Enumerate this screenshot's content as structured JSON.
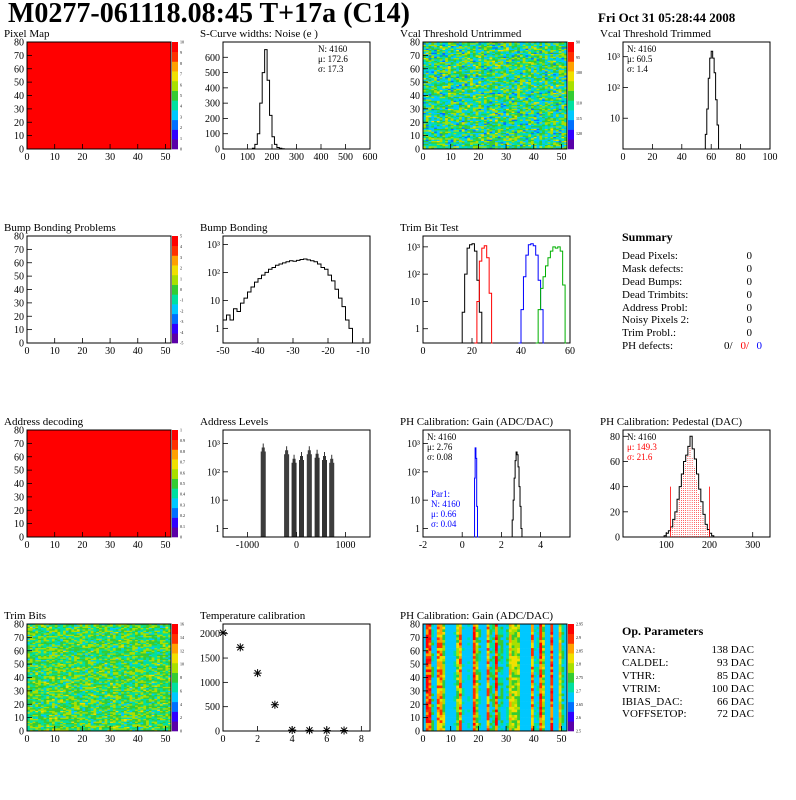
{
  "title": "M0277-061118.08:45 T+17a (C14)",
  "date": "Fri Oct 31 05:28:44 2008",
  "colors": {
    "palette": [
      "#5a00a8",
      "#3000ff",
      "#0070ff",
      "#00c8ff",
      "#00e0a0",
      "#33cc33",
      "#a8e000",
      "#f0e000",
      "#ffa000",
      "#ff3000",
      "#ff0000"
    ],
    "red": "#ff0000",
    "blue": "#0000ff",
    "green": "#00b000"
  },
  "summary": {
    "heading": "Summary",
    "rows": [
      {
        "label": "Dead Pixels:",
        "value": "0"
      },
      {
        "label": "Mask defects:",
        "value": "0"
      },
      {
        "label": "Dead Bumps:",
        "value": "0"
      },
      {
        "label": "Dead Trimbits:",
        "value": "0"
      },
      {
        "label": "Address Probl:",
        "value": "0"
      },
      {
        "label": "Noisy Pixels 2:",
        "value": "0"
      },
      {
        "label": "Trim Probl.:",
        "value": "0"
      }
    ],
    "ph_label": "PH defects:",
    "ph_values": [
      "0/",
      "0/",
      "0"
    ]
  },
  "op_params": {
    "heading": "Op. Parameters",
    "rows": [
      {
        "label": "VANA:",
        "value": "138 DAC"
      },
      {
        "label": "CALDEL:",
        "value": "93 DAC"
      },
      {
        "label": "VTHR:",
        "value": "85 DAC"
      },
      {
        "label": "VTRIM:",
        "value": "100 DAC"
      },
      {
        "label": "IBIAS_DAC:",
        "value": "66 DAC"
      },
      {
        "label": "VOFFSETOP:",
        "value": "72 DAC"
      }
    ]
  },
  "chart_data": [
    {
      "id": "pixel-map",
      "type": "heatmap",
      "title": "Pixel Map",
      "xlim": [
        0,
        52
      ],
      "ylim": [
        0,
        80
      ],
      "xticks": [
        "0",
        "10",
        "20",
        "30",
        "40",
        "50"
      ],
      "yticks": [
        "0",
        "10",
        "20",
        "30",
        "40",
        "50",
        "60",
        "70",
        "80"
      ],
      "zticks": [
        "0",
        "1",
        "2",
        "3",
        "4",
        "5",
        "6",
        "7",
        "8",
        "9",
        "10"
      ],
      "fill": "uniform-max"
    },
    {
      "id": "scurve-noise",
      "type": "histogram",
      "title": "S-Curve widths: Noise (e )",
      "xlim": [
        0,
        600
      ],
      "ylim": [
        0,
        700
      ],
      "xticks": [
        "0",
        "100",
        "200",
        "300",
        "400",
        "500",
        "600"
      ],
      "yticks": [
        "0",
        "100",
        "200",
        "300",
        "400",
        "500",
        "600"
      ],
      "stats": [
        "N: 4160",
        "μ: 172.6",
        "σ: 17.3"
      ],
      "series": [
        {
          "color": "#000",
          "x": [
            110,
            120,
            130,
            140,
            150,
            160,
            170,
            180,
            190,
            200,
            210,
            220,
            230,
            240,
            250
          ],
          "y": [
            0,
            5,
            30,
            100,
            300,
            500,
            650,
            450,
            220,
            80,
            30,
            10,
            5,
            2,
            0
          ]
        }
      ]
    },
    {
      "id": "vcal-untrimmed",
      "type": "heatmap",
      "title": "Vcal Threshold Untrimmed",
      "xlim": [
        0,
        52
      ],
      "ylim": [
        0,
        80
      ],
      "xticks": [
        "0",
        "10",
        "20",
        "30",
        "40",
        "50"
      ],
      "yticks": [
        "0",
        "10",
        "20",
        "30",
        "40",
        "50",
        "60",
        "70",
        "80"
      ],
      "zticks": [
        "",
        "120",
        "115",
        "110",
        "",
        "100",
        "95",
        "90"
      ],
      "fill": "noise-mid"
    },
    {
      "id": "vcal-trimmed",
      "type": "histogram",
      "title": "Vcal Threshold Trimmed",
      "xlim": [
        0,
        100
      ],
      "ylog": true,
      "ylim": [
        1,
        3000
      ],
      "xticks": [
        "0",
        "20",
        "40",
        "60",
        "80",
        "100"
      ],
      "yticks": [
        "10",
        "10²",
        "10³"
      ],
      "stats": [
        "N: 4160",
        "μ: 60.5",
        "σ:  1.4"
      ],
      "series": [
        {
          "color": "#000",
          "x": [
            55,
            56,
            57,
            58,
            59,
            60,
            61,
            62,
            63,
            64,
            65,
            66
          ],
          "y": [
            1,
            3,
            20,
            200,
            900,
            1500,
            900,
            300,
            40,
            6,
            1,
            1
          ]
        }
      ]
    },
    {
      "id": "bump-problems",
      "type": "heatmap",
      "title": "Bump Bonding Problems",
      "xlim": [
        0,
        52
      ],
      "ylim": [
        0,
        80
      ],
      "xticks": [
        "0",
        "10",
        "20",
        "30",
        "40",
        "50"
      ],
      "yticks": [
        "0",
        "10",
        "20",
        "30",
        "40",
        "50",
        "60",
        "70",
        "80"
      ],
      "zticks": [
        "-5",
        "-4",
        "-3",
        "-2",
        "-1",
        "0",
        "1",
        "2",
        "3",
        "4",
        "5"
      ],
      "fill": "empty"
    },
    {
      "id": "bump-bonding",
      "type": "histogram",
      "title": "Bump Bonding",
      "xlim": [
        -50,
        -8
      ],
      "ylog": true,
      "ylim": [
        0.3,
        2000
      ],
      "xticks": [
        "-50",
        "-40",
        "-30",
        "-20",
        "-10"
      ],
      "yticks": [
        "1",
        "10",
        "10²",
        "10³"
      ],
      "series": [
        {
          "color": "#000",
          "x": [
            -50,
            -49,
            -48,
            -47,
            -46,
            -45,
            -44,
            -43,
            -42,
            -41,
            -40,
            -39,
            -38,
            -37,
            -36,
            -35,
            -34,
            -33,
            -32,
            -31,
            -30,
            -29,
            -28,
            -27,
            -26,
            -25,
            -24,
            -23,
            -22,
            -21,
            -20,
            -19,
            -18,
            -17,
            -16,
            -15,
            -14,
            -13
          ],
          "y": [
            2,
            3,
            2,
            5,
            4,
            8,
            12,
            20,
            30,
            45,
            60,
            80,
            100,
            130,
            150,
            180,
            200,
            220,
            240,
            260,
            250,
            270,
            290,
            300,
            280,
            260,
            240,
            200,
            150,
            130,
            80,
            50,
            25,
            12,
            6,
            2,
            1,
            0.3
          ]
        }
      ]
    },
    {
      "id": "trim-bit-test",
      "type": "histogram",
      "title": "Trim Bit Test",
      "xlim": [
        0,
        60
      ],
      "ylog": true,
      "ylim": [
        0.3,
        2500
      ],
      "xticks": [
        "0",
        "20",
        "40",
        "60"
      ],
      "yticks": [
        "1",
        "10",
        "10²",
        "10³"
      ],
      "series": [
        {
          "color": "#000",
          "x": [
            15,
            16,
            17,
            18,
            19,
            20,
            21,
            22,
            23,
            24
          ],
          "y": [
            0.3,
            4,
            100,
            900,
            1200,
            1300,
            700,
            60,
            4,
            0.3
          ]
        },
        {
          "color": "#ff0000",
          "x": [
            21,
            22,
            23,
            24,
            25,
            26,
            27,
            28
          ],
          "y": [
            0.3,
            10,
            300,
            900,
            1100,
            400,
            20,
            0.3
          ]
        },
        {
          "color": "#0000ff",
          "x": [
            39,
            40,
            41,
            42,
            43,
            44,
            45,
            46,
            47,
            48,
            49
          ],
          "y": [
            0.3,
            5,
            80,
            500,
            1200,
            1300,
            1100,
            500,
            60,
            5,
            0.3
          ]
        },
        {
          "color": "#00b000",
          "x": [
            46,
            47,
            48,
            49,
            50,
            51,
            52,
            53,
            54,
            55,
            56,
            57,
            58
          ],
          "y": [
            0.3,
            5,
            30,
            80,
            200,
            400,
            700,
            1000,
            900,
            1000,
            700,
            40,
            0.3
          ]
        }
      ]
    },
    {
      "id": "address-decoding",
      "type": "heatmap",
      "title": "Address decoding",
      "xlim": [
        0,
        52
      ],
      "ylim": [
        0,
        80
      ],
      "xticks": [
        "0",
        "10",
        "20",
        "30",
        "40",
        "50"
      ],
      "yticks": [
        "0",
        "10",
        "20",
        "30",
        "40",
        "50",
        "60",
        "70",
        "80"
      ],
      "zticks": [
        "0",
        "0.1",
        "0.2",
        "0.3",
        "0.4",
        "0.5",
        "0.6",
        "0.7",
        "0.8",
        "0.9",
        "1"
      ],
      "fill": "uniform-max"
    },
    {
      "id": "address-levels",
      "type": "histogram",
      "title": "Address Levels",
      "xlim": [
        -1500,
        1500
      ],
      "ylog": true,
      "ylim": [
        0.5,
        3000
      ],
      "xticks": [
        "-1000",
        "0",
        "1000"
      ],
      "yticks": [
        "1",
        "10",
        "10²",
        "10³"
      ],
      "series": [
        {
          "color": "#000",
          "peaks": [
            -680,
            -200,
            -50,
            100,
            260,
            420,
            570,
            720
          ],
          "heights": [
            1000,
            800,
            400,
            500,
            800,
            600,
            500,
            400
          ]
        }
      ]
    },
    {
      "id": "ph-gain",
      "type": "histogram",
      "title": "PH Calibration: Gain (ADC/DAC)",
      "xlim": [
        -2,
        5.5
      ],
      "ylog": true,
      "ylim": [
        0.5,
        3000
      ],
      "xticks": [
        "-2",
        "0",
        "2",
        "4"
      ],
      "yticks": [
        "1",
        "10",
        "10²",
        "10³"
      ],
      "stats": [
        "N: 4160",
        "μ: 2.76",
        "σ: 0.08"
      ],
      "stats2": [
        "Par1:",
        "N: 4160",
        "μ: 0.66",
        "σ: 0.04"
      ],
      "series": [
        {
          "color": "#000",
          "x": [
            2.5,
            2.55,
            2.6,
            2.65,
            2.7,
            2.75,
            2.8,
            2.85,
            2.9,
            2.95,
            3.0,
            3.05
          ],
          "y": [
            0.5,
            2,
            10,
            60,
            250,
            500,
            400,
            150,
            30,
            6,
            1,
            0.5
          ]
        },
        {
          "color": "#0000ff",
          "x": [
            0.6,
            0.63,
            0.66,
            0.7,
            0.74,
            0.78
          ],
          "y": [
            0.5,
            60,
            700,
            300,
            6,
            0.5
          ]
        }
      ]
    },
    {
      "id": "ph-pedestal",
      "type": "histogram",
      "title": "PH Calibration: Pedestal (DAC)",
      "xlim": [
        0,
        340
      ],
      "ylim": [
        0,
        85
      ],
      "xticks": [
        "100",
        "200",
        "300"
      ],
      "yticks": [
        "0",
        "20",
        "40",
        "60",
        "80"
      ],
      "stats": [
        "N: 4160",
        "μ: 149.3",
        "σ: 21.6"
      ],
      "series": [
        {
          "color": "#000",
          "x": [
            95,
            100,
            105,
            110,
            115,
            120,
            125,
            130,
            135,
            140,
            145,
            150,
            155,
            160,
            165,
            170,
            175,
            180,
            185,
            190,
            195,
            200,
            205,
            210
          ],
          "y": [
            1,
            3,
            5,
            8,
            14,
            20,
            30,
            40,
            50,
            60,
            65,
            72,
            80,
            70,
            62,
            50,
            38,
            28,
            18,
            10,
            6,
            3,
            1,
            0
          ]
        }
      ]
    },
    {
      "id": "trim-bits",
      "type": "heatmap",
      "title": "Trim Bits",
      "xlim": [
        0,
        52
      ],
      "ylim": [
        0,
        80
      ],
      "xticks": [
        "0",
        "10",
        "20",
        "30",
        "40",
        "50"
      ],
      "yticks": [
        "0",
        "10",
        "20",
        "30",
        "40",
        "50",
        "60",
        "70",
        "80"
      ],
      "zticks": [
        "0",
        "2",
        "4",
        "6",
        "8",
        "10",
        "12",
        "14",
        "16"
      ],
      "fill": "noise-green"
    },
    {
      "id": "temperature-calibration",
      "type": "scatter",
      "title": "Temperature calibration",
      "xlim": [
        0,
        8.5
      ],
      "ylim": [
        0,
        2200
      ],
      "xticks": [
        "0",
        "2",
        "4",
        "6",
        "8"
      ],
      "yticks": [
        "0",
        "500",
        "1000",
        "1500",
        "2000"
      ],
      "x": [
        0,
        1,
        2,
        3,
        4,
        5,
        6,
        7
      ],
      "y": [
        2020,
        1720,
        1190,
        540,
        20,
        15,
        10,
        10
      ]
    },
    {
      "id": "ph-gain-map",
      "type": "heatmap",
      "title": "PH Calibration: Gain (ADC/DAC)",
      "xlim": [
        0,
        52
      ],
      "ylim": [
        0,
        80
      ],
      "xticks": [
        "0",
        "10",
        "20",
        "30",
        "40",
        "50"
      ],
      "yticks": [
        "0",
        "10",
        "20",
        "30",
        "40",
        "50",
        "60",
        "70",
        "80"
      ],
      "zticks": [
        "2.5",
        "2.6",
        "2.65",
        "2.7",
        "2.75",
        "2.8",
        "2.85",
        "2.9",
        "2.95"
      ],
      "fill": "column-stripes"
    }
  ]
}
